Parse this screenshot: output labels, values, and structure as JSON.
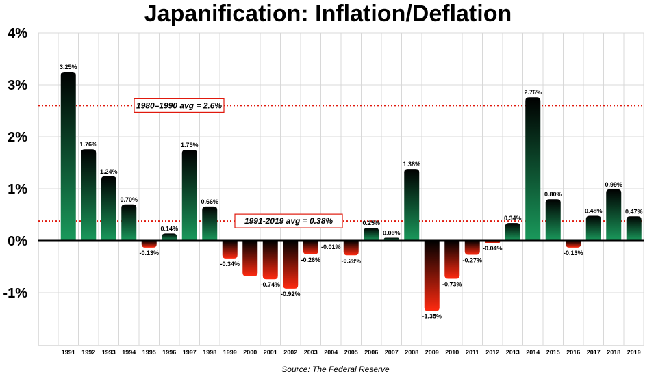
{
  "title": "Japanification: Inflation/Deflation",
  "source": "Source: The Federal Reserve",
  "colors": {
    "positive_top": "#000000",
    "positive_bottom": "#1a9a5c",
    "negative_top": "#000000",
    "negative_bottom": "#ff2a10",
    "avg_line": "#e0190d",
    "grid": "#d8d8d8",
    "zero_line": "#000000"
  },
  "chart_data": {
    "type": "bar",
    "title": "Japanification: Inflation/Deflation",
    "xlabel": "",
    "ylabel": "",
    "ylim": [
      -2,
      4
    ],
    "yticks": [
      -1,
      0,
      1,
      2,
      3,
      4
    ],
    "ytick_labels": [
      "-1%",
      "0%",
      "1%",
      "2%",
      "3%",
      "4%"
    ],
    "grid": true,
    "categories": [
      "1991",
      "1992",
      "1993",
      "1994",
      "1995",
      "1996",
      "1997",
      "1998",
      "1999",
      "2000",
      "2001",
      "2002",
      "2003",
      "2004",
      "2005",
      "2006",
      "2007",
      "2008",
      "2009",
      "2010",
      "2011",
      "2012",
      "2013",
      "2014",
      "2015",
      "2016",
      "2017",
      "2018",
      "2019"
    ],
    "values": [
      3.25,
      1.76,
      1.24,
      0.7,
      -0.13,
      0.14,
      1.75,
      0.66,
      -0.34,
      -0.68,
      -0.74,
      -0.92,
      -0.26,
      -0.01,
      -0.28,
      0.25,
      0.06,
      1.38,
      -1.35,
      -0.73,
      -0.27,
      -0.04,
      0.34,
      2.76,
      0.8,
      -0.13,
      0.48,
      0.99,
      0.47
    ],
    "data_labels": [
      "3.25%",
      "1.76%",
      "1.24%",
      "0.70%",
      "-0.13%",
      "0.14%",
      "1.75%",
      "0.66%",
      "-0.34%",
      "",
      "-0.74%",
      "-0.92%",
      "-0.26%",
      "-0.01%",
      "-0.28%",
      "0.25%",
      "0.06%",
      "1.38%",
      "-1.35%",
      "-0.73%",
      "-0.27%",
      "-0.04%",
      "0.34%",
      "2.76%",
      "0.80%",
      "-0.13%",
      "0.48%",
      "0.99%",
      "0.47%"
    ],
    "reference_lines": [
      {
        "label": "1980–1990 avg = 2.6%",
        "value": 2.6
      },
      {
        "label": "1991-2019 avg = 0.38%",
        "value": 0.38
      }
    ]
  }
}
